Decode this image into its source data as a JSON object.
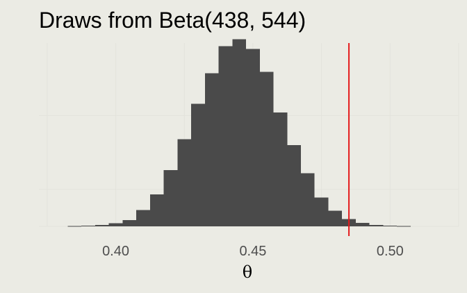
{
  "chart_data": {
    "type": "bar",
    "title": "Draws from Beta(438, 544)",
    "xlabel": "θ",
    "ylabel": "",
    "x_ticks": [
      {
        "value": 0.4,
        "label": "0.40"
      },
      {
        "value": 0.45,
        "label": "0.45"
      },
      {
        "value": 0.5,
        "label": "0.50"
      }
    ],
    "xlim": [
      0.372,
      0.525
    ],
    "ylim": [
      0,
      2480
    ],
    "y_grid": [
      0,
      500,
      1500
    ],
    "bin_width": 0.005,
    "bins": [
      {
        "x0": 0.3825,
        "count": 5
      },
      {
        "x0": 0.3875,
        "count": 10
      },
      {
        "x0": 0.3925,
        "count": 20
      },
      {
        "x0": 0.3975,
        "count": 40
      },
      {
        "x0": 0.4025,
        "count": 85
      },
      {
        "x0": 0.4075,
        "count": 220
      },
      {
        "x0": 0.4125,
        "count": 430
      },
      {
        "x0": 0.4175,
        "count": 760
      },
      {
        "x0": 0.4225,
        "count": 1180
      },
      {
        "x0": 0.4275,
        "count": 1660
      },
      {
        "x0": 0.4325,
        "count": 2070
      },
      {
        "x0": 0.4375,
        "count": 2440
      },
      {
        "x0": 0.4425,
        "count": 2530
      },
      {
        "x0": 0.4475,
        "count": 2400
      },
      {
        "x0": 0.4525,
        "count": 2090
      },
      {
        "x0": 0.4575,
        "count": 1540
      },
      {
        "x0": 0.4625,
        "count": 1100
      },
      {
        "x0": 0.4675,
        "count": 720
      },
      {
        "x0": 0.4725,
        "count": 390
      },
      {
        "x0": 0.4775,
        "count": 210
      },
      {
        "x0": 0.4825,
        "count": 100
      },
      {
        "x0": 0.4875,
        "count": 45
      },
      {
        "x0": 0.4925,
        "count": 20
      },
      {
        "x0": 0.4975,
        "count": 8
      },
      {
        "x0": 0.5025,
        "count": 3
      }
    ],
    "vline": {
      "x": 0.485,
      "color": "#e41a1c"
    },
    "bar_color": "#4a4a4a",
    "background": "#ebebe4",
    "grid": true,
    "legend": "none"
  }
}
